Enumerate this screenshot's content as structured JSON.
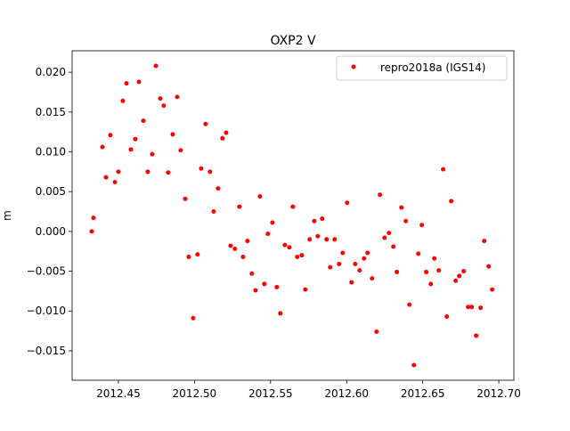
{
  "chart_data": {
    "type": "scatter",
    "title": "OXP2 V",
    "y_label": "m",
    "x": [
      2012.4325,
      2012.4336,
      2012.4395,
      2012.4418,
      2012.4447,
      2012.4477,
      2012.45,
      2012.4529,
      2012.4553,
      2012.4582,
      2012.4611,
      2012.4635,
      2012.4664,
      2012.4693,
      2012.4722,
      2012.4746,
      2012.4775,
      2012.4798,
      2012.4827,
      2012.4857,
      2012.4886,
      2012.4909,
      2012.4939,
      2012.4962,
      2012.4991,
      2012.502,
      2012.5044,
      2012.5073,
      2012.5102,
      2012.5126,
      2012.5155,
      2012.5184,
      2012.5208,
      2012.5237,
      2012.5266,
      2012.5295,
      2012.5319,
      2012.5348,
      2012.5377,
      2012.5401,
      2012.543,
      2012.5459,
      2012.5482,
      2012.5512,
      2012.5541,
      2012.5564,
      2012.5594,
      2012.5623,
      2012.5646,
      2012.5675,
      2012.5705,
      2012.5728,
      2012.5757,
      2012.5787,
      2012.581,
      2012.5839,
      2012.5868,
      2012.5892,
      2012.5921,
      2012.595,
      2012.5974,
      2012.6003,
      2012.6032,
      2012.6056,
      2012.6085,
      2012.6114,
      2012.6137,
      2012.6167,
      2012.6196,
      2012.6219,
      2012.6249,
      2012.6278,
      2012.6307,
      2012.633,
      2012.636,
      2012.6389,
      2012.6412,
      2012.6442,
      2012.6471,
      2012.6494,
      2012.6523,
      2012.6553,
      2012.6576,
      2012.6605,
      2012.6634,
      2012.6658,
      2012.6687,
      2012.6716,
      2012.674,
      2012.6769,
      2012.6798,
      2012.6822,
      2012.6851,
      2012.688,
      2012.6904,
      2012.6933,
      2012.6956
    ],
    "series": [
      {
        "name": "repro2018a (IGS14)",
        "color": "#ff0000",
        "values": [
          0.0,
          0.0017,
          0.0106,
          0.0068,
          0.0121,
          0.0062,
          0.0075,
          0.0164,
          0.0186,
          0.0103,
          0.0116,
          0.0188,
          0.0139,
          0.0075,
          0.0097,
          0.0208,
          0.0167,
          0.0158,
          0.0074,
          0.0122,
          0.0169,
          0.0102,
          0.0041,
          -0.0032,
          -0.0109,
          -0.0029,
          0.0079,
          0.0135,
          0.0075,
          0.0025,
          0.0054,
          0.0117,
          0.0124,
          -0.0018,
          -0.0022,
          0.0031,
          -0.0032,
          -0.0012,
          -0.0053,
          -0.0074,
          0.0044,
          -0.0066,
          -0.0003,
          0.0011,
          -0.007,
          -0.0103,
          -0.0017,
          -0.002,
          0.0031,
          -0.0032,
          -0.003,
          -0.0073,
          -0.001,
          0.0013,
          -0.0006,
          0.0016,
          -0.001,
          -0.0045,
          -0.001,
          -0.0041,
          -0.0027,
          0.0036,
          -0.0064,
          -0.0041,
          -0.0049,
          -0.0034,
          -0.0027,
          -0.0059,
          -0.0126,
          0.0046,
          -0.0008,
          -0.0002,
          -0.0019,
          -0.0051,
          0.003,
          0.0013,
          -0.0092,
          -0.0168,
          -0.0028,
          0.0008,
          -0.0051,
          -0.0066,
          -0.0034,
          -0.0049,
          0.0078,
          -0.0107,
          0.0038,
          -0.0062,
          -0.0056,
          -0.005,
          -0.0095,
          -0.0095,
          -0.0131,
          -0.0096,
          -0.0012,
          -0.0044,
          -0.0073
        ]
      }
    ],
    "xlim": [
      2012.4196,
      2012.7099
    ],
    "ylim": [
      -0.0187,
      0.0227
    ],
    "xticks": [
      2012.45,
      {
        "value": 2012.5,
        "label": "2012.50"
      },
      2012.55,
      {
        "value": 2012.6,
        "label": "2012.60"
      },
      2012.65,
      {
        "value": 2012.7,
        "label": "2012.70"
      }
    ],
    "yticks": [
      {
        "value": -0.015,
        "label": "−0.015"
      },
      {
        "value": -0.01,
        "label": "−0.010"
      },
      {
        "value": -0.005,
        "label": "−0.005"
      },
      {
        "value": 0,
        "label": "0.000"
      },
      0.005,
      {
        "value": 0.01,
        "label": "0.010"
      },
      0.015,
      {
        "value": 0.02,
        "label": "0.020"
      }
    ],
    "legend": "upper right",
    "grid": false
  }
}
